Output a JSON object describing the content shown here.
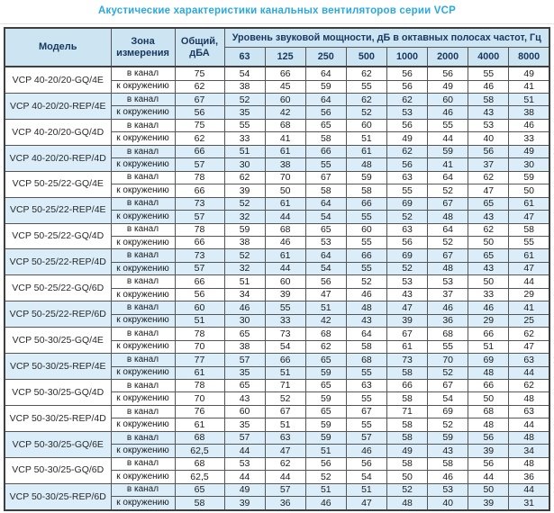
{
  "title": "Акустические характеристики канальных вентиляторов  серии VCP",
  "colors": {
    "title_accent": "#29a9e0",
    "header_bg": "#cde4f2",
    "row_shade": "#daedf8",
    "header_text": "#17375e",
    "border": "#3f3f3f"
  },
  "table": {
    "headers": {
      "model": "Модель",
      "zone": "Зона измерения",
      "total": "Общий, дБА",
      "spectrum": "Уровень звуковой мощности, дБ в октавных полосах частот, Гц",
      "frequencies": [
        "63",
        "125",
        "250",
        "500",
        "1000",
        "2000",
        "4000",
        "8000"
      ]
    },
    "zone_labels": {
      "duct": "в канал",
      "ambient": "к окружению"
    },
    "rows": [
      {
        "model": "VCP 40-20/20-GQ/4E",
        "shaded": false,
        "duct": {
          "total": "75",
          "levels": [
            54,
            66,
            64,
            62,
            56,
            56,
            55,
            49
          ]
        },
        "ambient": {
          "total": "62",
          "levels": [
            38,
            45,
            59,
            55,
            56,
            49,
            46,
            41
          ]
        }
      },
      {
        "model": "VCP 40-20/20-REP/4E",
        "shaded": true,
        "duct": {
          "total": "67",
          "levels": [
            52,
            60,
            64,
            62,
            62,
            60,
            58,
            51
          ]
        },
        "ambient": {
          "total": "56",
          "levels": [
            35,
            42,
            56,
            52,
            53,
            46,
            43,
            38
          ]
        }
      },
      {
        "model": "VCP 40-20/20-GQ/4D",
        "shaded": false,
        "duct": {
          "total": "75",
          "levels": [
            55,
            68,
            65,
            60,
            56,
            55,
            53,
            46
          ]
        },
        "ambient": {
          "total": "62",
          "levels": [
            33,
            41,
            58,
            51,
            49,
            44,
            40,
            33
          ]
        }
      },
      {
        "model": "VCP 40-20/20-REP/4D",
        "shaded": true,
        "duct": {
          "total": "66",
          "levels": [
            51,
            61,
            66,
            61,
            62,
            59,
            56,
            49
          ]
        },
        "ambient": {
          "total": "57",
          "levels": [
            30,
            38,
            55,
            48,
            56,
            41,
            37,
            30
          ]
        }
      },
      {
        "model": "VCP 50-25/22-GQ/4E",
        "shaded": false,
        "duct": {
          "total": "78",
          "levels": [
            62,
            70,
            67,
            59,
            63,
            64,
            62,
            59
          ]
        },
        "ambient": {
          "total": "66",
          "levels": [
            39,
            50,
            58,
            58,
            55,
            52,
            47,
            50
          ]
        }
      },
      {
        "model": "VCP 50-25/22-REP/4E",
        "shaded": true,
        "duct": {
          "total": "73",
          "levels": [
            52,
            61,
            64,
            66,
            69,
            67,
            65,
            61
          ]
        },
        "ambient": {
          "total": "57",
          "levels": [
            32,
            44,
            54,
            55,
            52,
            48,
            43,
            47
          ]
        }
      },
      {
        "model": "VCP 50-25/22-GQ/4D",
        "shaded": false,
        "duct": {
          "total": "78",
          "levels": [
            59,
            68,
            65,
            60,
            63,
            64,
            62,
            58
          ]
        },
        "ambient": {
          "total": "66",
          "levels": [
            38,
            46,
            53,
            55,
            56,
            52,
            50,
            55
          ]
        }
      },
      {
        "model": "VCP 50-25/22-REP/4D",
        "shaded": true,
        "duct": {
          "total": "73",
          "levels": [
            52,
            61,
            64,
            66,
            69,
            67,
            65,
            61
          ]
        },
        "ambient": {
          "total": "57",
          "levels": [
            32,
            44,
            54,
            55,
            52,
            48,
            43,
            47
          ]
        }
      },
      {
        "model": "VCP 50-25/22-GQ/6D",
        "shaded": false,
        "duct": {
          "total": "66",
          "levels": [
            51,
            60,
            56,
            52,
            53,
            53,
            50,
            44
          ]
        },
        "ambient": {
          "total": "56",
          "levels": [
            34,
            39,
            47,
            46,
            43,
            37,
            33,
            29
          ]
        }
      },
      {
        "model": "VCP 50-25/22-REP/6D",
        "shaded": true,
        "duct": {
          "total": "60",
          "levels": [
            46,
            55,
            51,
            48,
            47,
            46,
            46,
            41
          ]
        },
        "ambient": {
          "total": "51",
          "levels": [
            30,
            33,
            42,
            43,
            39,
            36,
            29,
            25
          ]
        }
      },
      {
        "model": "VCP 50-30/25-GQ/4E",
        "shaded": false,
        "duct": {
          "total": "78",
          "levels": [
            65,
            73,
            68,
            64,
            67,
            68,
            66,
            62
          ]
        },
        "ambient": {
          "total": "70",
          "levels": [
            38,
            54,
            62,
            58,
            61,
            55,
            51,
            47
          ]
        }
      },
      {
        "model": "VCP 50-30/25-REP/4E",
        "shaded": true,
        "duct": {
          "total": "77",
          "levels": [
            57,
            66,
            65,
            68,
            73,
            70,
            69,
            63
          ]
        },
        "ambient": {
          "total": "61",
          "levels": [
            35,
            51,
            59,
            55,
            58,
            52,
            48,
            44
          ]
        }
      },
      {
        "model": "VCP 50-30/25-GQ/4D",
        "shaded": false,
        "duct": {
          "total": "78",
          "levels": [
            65,
            71,
            65,
            63,
            66,
            67,
            66,
            62
          ]
        },
        "ambient": {
          "total": "70",
          "levels": [
            43,
            52,
            59,
            55,
            58,
            54,
            50,
            48
          ]
        }
      },
      {
        "model": "VCP 50-30/25-REP/4D",
        "shaded": false,
        "duct": {
          "total": "76",
          "levels": [
            60,
            67,
            65,
            67,
            71,
            69,
            68,
            63
          ]
        },
        "ambient": {
          "total": "61",
          "levels": [
            35,
            51,
            59,
            55,
            58,
            52,
            48,
            44
          ]
        }
      },
      {
        "model": "VCP 50-30/25-GQ/6E",
        "shaded": true,
        "duct": {
          "total": "68",
          "levels": [
            57,
            63,
            59,
            57,
            58,
            59,
            56,
            48
          ]
        },
        "ambient": {
          "total": "62,5",
          "levels": [
            44,
            47,
            51,
            46,
            49,
            43,
            39,
            34
          ]
        }
      },
      {
        "model": "VCP 50-30/25-GQ/6D",
        "shaded": false,
        "duct": {
          "total": "68",
          "levels": [
            53,
            62,
            56,
            56,
            58,
            58,
            56,
            48
          ]
        },
        "ambient": {
          "total": "62,5",
          "levels": [
            44,
            44,
            52,
            54,
            50,
            46,
            44,
            36
          ]
        }
      },
      {
        "model": "VCP 50-30/25-REP/6D",
        "shaded": true,
        "duct": {
          "total": "65",
          "levels": [
            49,
            57,
            51,
            51,
            52,
            53,
            50,
            44
          ]
        },
        "ambient": {
          "total": "58",
          "levels": [
            39,
            36,
            46,
            47,
            48,
            40,
            39,
            31
          ]
        }
      }
    ]
  }
}
